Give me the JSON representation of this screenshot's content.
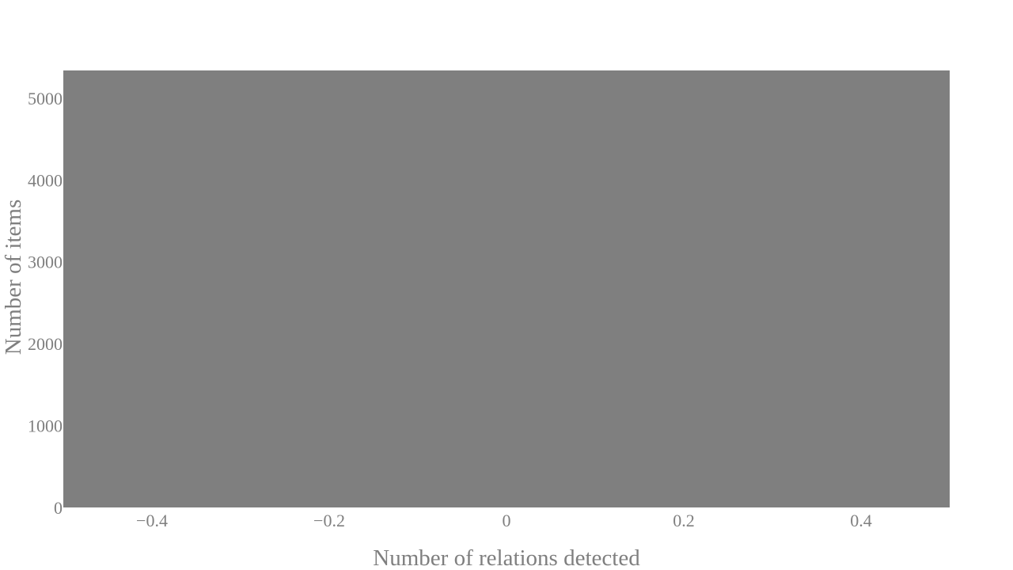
{
  "chart_data": {
    "type": "bar",
    "title": "",
    "xlabel": "Number of relations detected",
    "ylabel": "Number of items",
    "x": [
      0
    ],
    "values": [
      5337
    ],
    "bar_width": 1,
    "xlim": [
      -0.5,
      0.5
    ],
    "ylim": [
      0,
      5337
    ],
    "x_ticks": [
      -0.4,
      -0.2,
      0,
      0.2,
      0.4
    ],
    "x_tick_labels": [
      "−0.4",
      "−0.2",
      "0",
      "0.2",
      "0.4"
    ],
    "y_ticks": [
      0,
      1000,
      2000,
      3000,
      4000,
      5000
    ],
    "y_tick_labels": [
      "0",
      "1000",
      "2000",
      "3000",
      "4000",
      "5000"
    ],
    "grid": false,
    "legend": "none",
    "colors": {
      "bar": "#7f7f7f",
      "text": "#7f7f7f",
      "background": "#ffffff"
    }
  }
}
